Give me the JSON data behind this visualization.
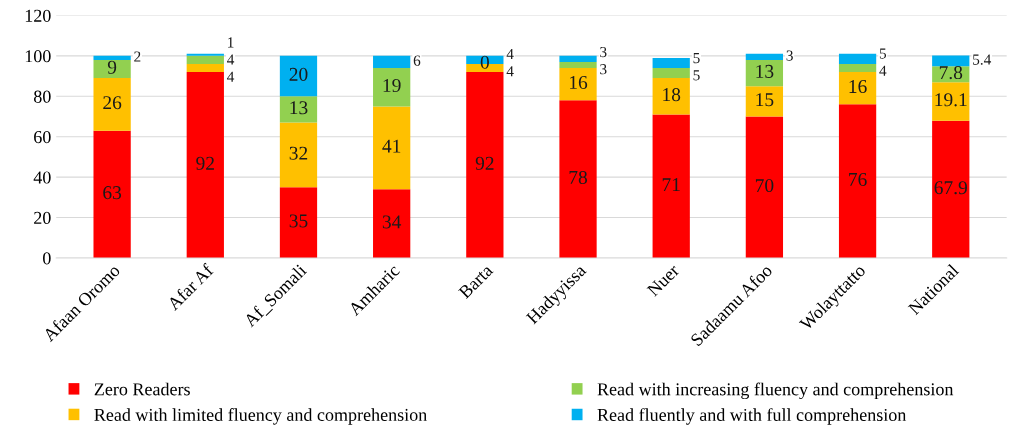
{
  "chart_data": {
    "type": "bar",
    "stacked": true,
    "categories": [
      "Afaan Oromo",
      "Afar Af",
      "Af_Somali",
      "Amharic",
      "Barta",
      "Hadyyissa",
      "Nuer",
      "Sadaamu Afoo",
      "Wolayttatto",
      "National"
    ],
    "series": [
      {
        "name": "Zero Readers",
        "color": "#ff0000",
        "values": [
          63,
          92,
          35,
          34,
          92,
          78,
          71,
          70,
          76,
          67.9
        ]
      },
      {
        "name": "Read with limited fluency and comprehension",
        "color": "#ffc000",
        "values": [
          26,
          4,
          32,
          41,
          4,
          16,
          18,
          15,
          16,
          19.1
        ]
      },
      {
        "name": "Read with increasing fluency and comprehension",
        "color": "#92d050",
        "values": [
          9,
          4,
          13,
          19,
          0,
          3,
          5,
          13,
          4,
          7.8
        ]
      },
      {
        "name": "Read fluently and with full comprehension",
        "color": "#00b0f0",
        "values": [
          2,
          1,
          20,
          6,
          4,
          3,
          5,
          3,
          5,
          5.4
        ]
      }
    ],
    "ylim": [
      0,
      120
    ],
    "yticks": [
      0,
      20,
      40,
      60,
      80,
      100,
      120
    ],
    "grid": "y",
    "legend": "bottom",
    "data_labels": true
  }
}
